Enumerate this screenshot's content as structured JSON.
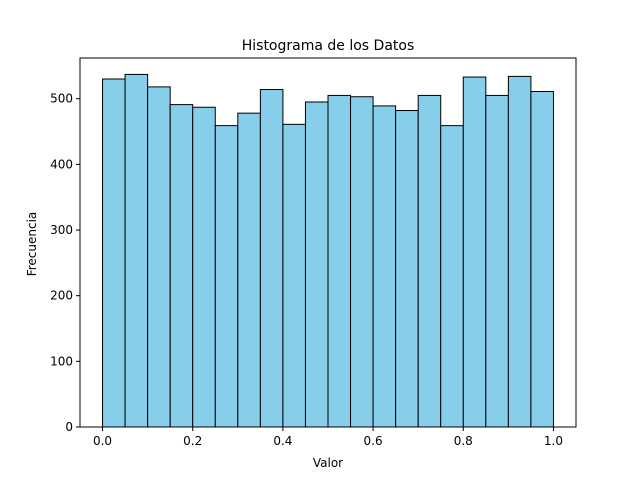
{
  "chart_data": {
    "type": "bar",
    "title": "Histograma de los Datos",
    "xlabel": "Valor",
    "ylabel": "Frecuencia",
    "bin_edges": [
      0.0,
      0.05,
      0.1,
      0.15,
      0.2,
      0.25,
      0.3,
      0.35,
      0.4,
      0.45,
      0.5,
      0.55,
      0.6,
      0.65,
      0.7,
      0.75,
      0.8,
      0.85,
      0.9,
      0.95,
      1.0
    ],
    "values": [
      530,
      537,
      518,
      491,
      487,
      459,
      478,
      514,
      461,
      495,
      505,
      503,
      489,
      482,
      505,
      459,
      533,
      505,
      534,
      511
    ],
    "xlim": [
      -0.05,
      1.05
    ],
    "ylim": [
      0,
      562
    ],
    "xticks": [
      0.0,
      0.2,
      0.4,
      0.6,
      0.8,
      1.0
    ],
    "xtick_labels": [
      "0.0",
      "0.2",
      "0.4",
      "0.6",
      "0.8",
      "1.0"
    ],
    "yticks": [
      0,
      100,
      200,
      300,
      400,
      500
    ],
    "ytick_labels": [
      "0",
      "100",
      "200",
      "300",
      "400",
      "500"
    ],
    "bar_color": "#87ceeb",
    "edge_color": "#000000",
    "grid": false,
    "legend": "none"
  }
}
